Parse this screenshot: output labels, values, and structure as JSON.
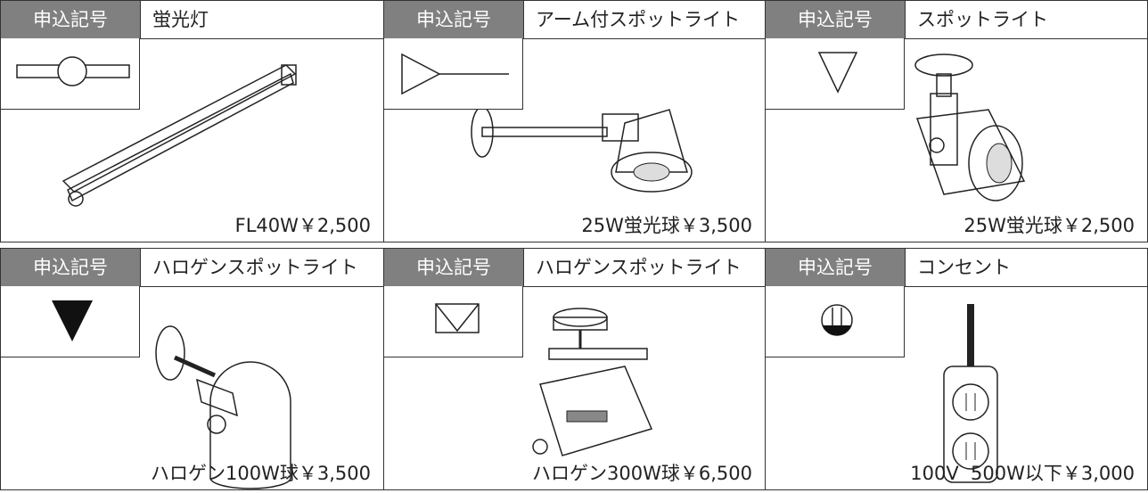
{
  "cells": [
    {
      "label": "申込記号",
      "name": "蛍光灯",
      "price": "FL40W￥2,500"
    },
    {
      "label": "申込記号",
      "name": "アーム付スポットライト",
      "price": "25W蛍光球￥3,500"
    },
    {
      "label": "申込記号",
      "name": "スポットライト",
      "price": "25W蛍光球￥2,500"
    },
    {
      "label": "申込記号",
      "name": "ハロゲンスポットライト",
      "price": "ハロゲン100W球￥3,500"
    },
    {
      "label": "申込記号",
      "name": "ハロゲンスポットライト",
      "price": "ハロゲン300W球￥6,500"
    },
    {
      "label": "申込記号",
      "name": "コンセント",
      "price": "100V  500W以下￥3,000"
    }
  ]
}
